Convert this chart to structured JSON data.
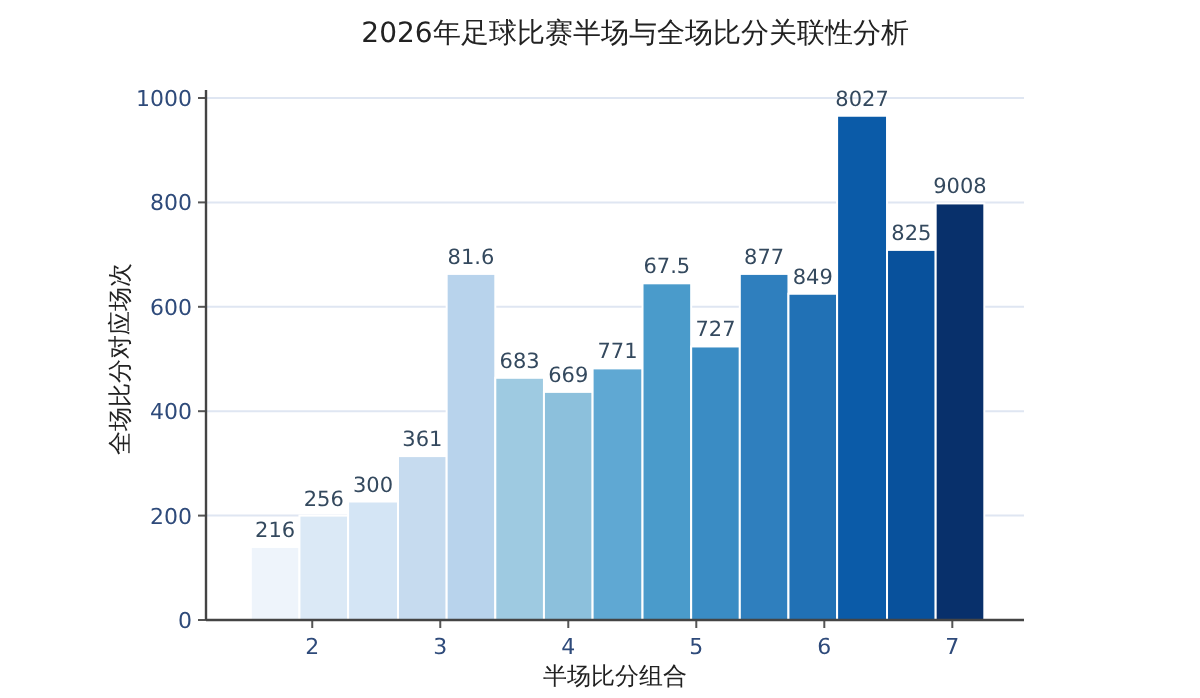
{
  "chart_data": {
    "type": "histogram",
    "title": "2026年足球比赛半场与全场比分关联性分析",
    "xlabel": "半场比分组合",
    "ylabel": "全场比分对应场次",
    "bins": [
      1.52,
      1.9,
      2.28,
      2.67,
      3.05,
      3.43,
      3.81,
      4.19,
      4.58,
      4.96,
      5.34,
      5.72,
      6.1,
      6.49,
      6.87,
      7.25
    ],
    "values": [
      140,
      200,
      227,
      314,
      663,
      464,
      437,
      482,
      645,
      524,
      663,
      625,
      966,
      709,
      798
    ],
    "annotations": [
      {
        "text": "216",
        "x": 1.71,
        "y": 140
      },
      {
        "text": "256",
        "x": 2.09,
        "y": 200
      },
      {
        "text": "300",
        "x": 2.475,
        "y": 227
      },
      {
        "text": "361",
        "x": 2.86,
        "y": 314
      },
      {
        "text": "81.6",
        "x": 3.24,
        "y": 663
      },
      {
        "text": "683",
        "x": 3.62,
        "y": 464
      },
      {
        "text": "669",
        "x": 4.0,
        "y": 437
      },
      {
        "text": "771",
        "x": 4.385,
        "y": 482
      },
      {
        "text": "67.5",
        "x": 4.77,
        "y": 645
      },
      {
        "text": "727",
        "x": 5.15,
        "y": 524
      },
      {
        "text": "877",
        "x": 5.53,
        "y": 663
      },
      {
        "text": "849",
        "x": 5.91,
        "y": 625
      },
      {
        "text": "8027",
        "x": 6.295,
        "y": 966
      },
      {
        "text": "825",
        "x": 6.68,
        "y": 709
      },
      {
        "text": "9008",
        "x": 7.06,
        "y": 798
      }
    ],
    "colors": [
      "#eef4fb",
      "#dbe9f6",
      "#d4e5f5",
      "#c6dbef",
      "#b8d3ec",
      "#9ecae1",
      "#8cc0dc",
      "#5fa8d3",
      "#4a9bcb",
      "#3a8cc4",
      "#2f7fbe",
      "#2171b5",
      "#0b5ba8",
      "#08519c",
      "#08306b"
    ],
    "xlim": [
      1.17,
      7.56
    ],
    "xticks": [
      2,
      3,
      4,
      5,
      6,
      7
    ],
    "ylim": [
      0,
      1000
    ],
    "yticks": [
      0,
      200,
      400,
      600,
      800,
      1000
    ],
    "grid": "y"
  }
}
